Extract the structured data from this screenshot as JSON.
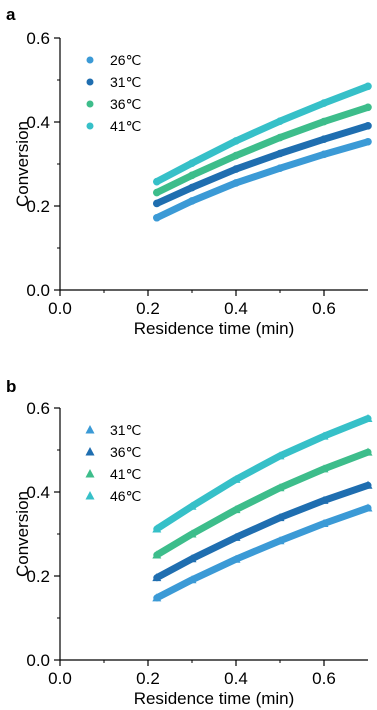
{
  "chart_data": [
    {
      "panel": "a",
      "type": "scatter",
      "xlabel": "Residence time (min)",
      "ylabel": "Conversion",
      "xlim": [
        0.0,
        0.7
      ],
      "ylim": [
        0.0,
        0.6
      ],
      "xticks": [
        "0.0",
        "0.2",
        "0.4",
        "0.6"
      ],
      "yticks": [
        "0.0",
        "0.2",
        "0.4",
        "0.6"
      ],
      "marker": "circle",
      "legend": "top-left",
      "series": [
        {
          "name": "26℃",
          "color": "#3b9ad6",
          "x": [
            0.22,
            0.3,
            0.4,
            0.5,
            0.6,
            0.7
          ],
          "y": [
            0.172,
            0.212,
            0.255,
            0.29,
            0.323,
            0.353
          ]
        },
        {
          "name": "31℃",
          "color": "#1f6eb0",
          "x": [
            0.22,
            0.3,
            0.4,
            0.5,
            0.6,
            0.7
          ],
          "y": [
            0.206,
            0.244,
            0.288,
            0.325,
            0.359,
            0.391
          ]
        },
        {
          "name": "36℃",
          "color": "#3dbd8b",
          "x": [
            0.22,
            0.3,
            0.4,
            0.5,
            0.6,
            0.7
          ],
          "y": [
            0.232,
            0.273,
            0.32,
            0.363,
            0.401,
            0.435
          ]
        },
        {
          "name": "41℃",
          "color": "#36c0c8",
          "x": [
            0.22,
            0.3,
            0.4,
            0.5,
            0.6,
            0.7
          ],
          "y": [
            0.258,
            0.302,
            0.355,
            0.402,
            0.445,
            0.485
          ]
        }
      ]
    },
    {
      "panel": "b",
      "type": "scatter",
      "xlabel": "Residence time (min)",
      "ylabel": "Conversion",
      "xlim": [
        0.0,
        0.7
      ],
      "ylim": [
        0.0,
        0.6
      ],
      "xticks": [
        "0.0",
        "0.2",
        "0.4",
        "0.6"
      ],
      "yticks": [
        "0.0",
        "0.2",
        "0.4",
        "0.6"
      ],
      "marker": "triangle",
      "legend": "top-left",
      "series": [
        {
          "name": "31℃",
          "color": "#3b9ad6",
          "x": [
            0.22,
            0.3,
            0.4,
            0.5,
            0.6,
            0.7
          ],
          "y": [
            0.148,
            0.191,
            0.24,
            0.284,
            0.325,
            0.362
          ]
        },
        {
          "name": "36℃",
          "color": "#1f6eb0",
          "x": [
            0.22,
            0.3,
            0.4,
            0.5,
            0.6,
            0.7
          ],
          "y": [
            0.196,
            0.241,
            0.292,
            0.339,
            0.38,
            0.416
          ]
        },
        {
          "name": "41℃",
          "color": "#3dbd8b",
          "x": [
            0.22,
            0.3,
            0.4,
            0.5,
            0.6,
            0.7
          ],
          "y": [
            0.25,
            0.3,
            0.358,
            0.41,
            0.455,
            0.495
          ]
        },
        {
          "name": "46℃",
          "color": "#36c0c8",
          "x": [
            0.22,
            0.3,
            0.4,
            0.5,
            0.6,
            0.7
          ],
          "y": [
            0.312,
            0.366,
            0.43,
            0.486,
            0.533,
            0.575
          ]
        }
      ]
    }
  ]
}
